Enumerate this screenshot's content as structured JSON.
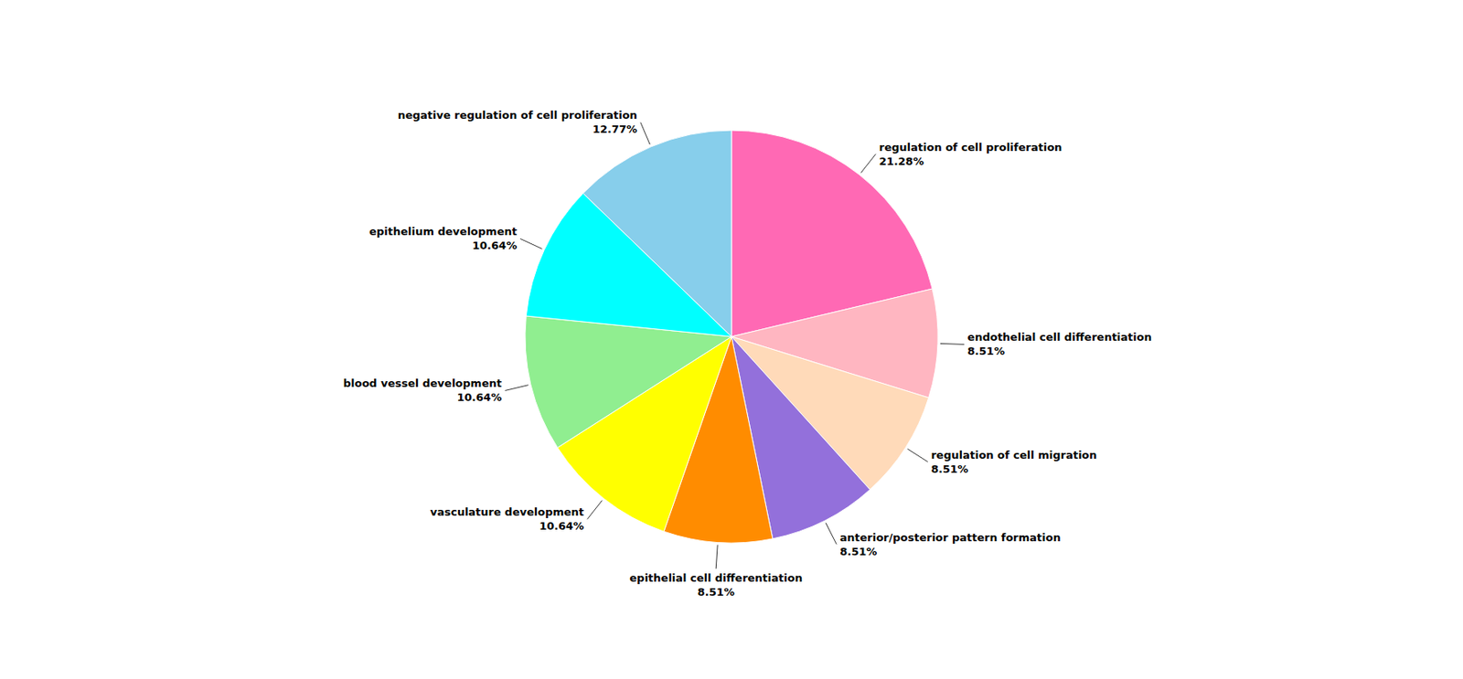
{
  "chart_data": {
    "type": "pie",
    "categories": [
      "regulation of cell proliferation",
      "endothelial cell differentiation",
      "regulation of cell migration",
      "anterior/posterior pattern formation",
      "epithelial cell differentiation",
      "vasculature development",
      "blood vessel development",
      "epithelium development",
      "negative regulation of cell proliferation"
    ],
    "values": [
      21.28,
      8.51,
      8.51,
      8.51,
      8.51,
      10.64,
      10.64,
      10.64,
      12.77
    ],
    "value_labels": [
      "21.28%",
      "8.51%",
      "8.51%",
      "8.51%",
      "8.51%",
      "10.64%",
      "10.64%",
      "10.64%",
      "12.77%"
    ],
    "colors": [
      "#FF69B4",
      "#FFB6C1",
      "#FFDAB9",
      "#9370DB",
      "#FF8C00",
      "#FFFF00",
      "#90EE90",
      "#00FFFF",
      "#87CEEB"
    ],
    "data_labels": true
  }
}
